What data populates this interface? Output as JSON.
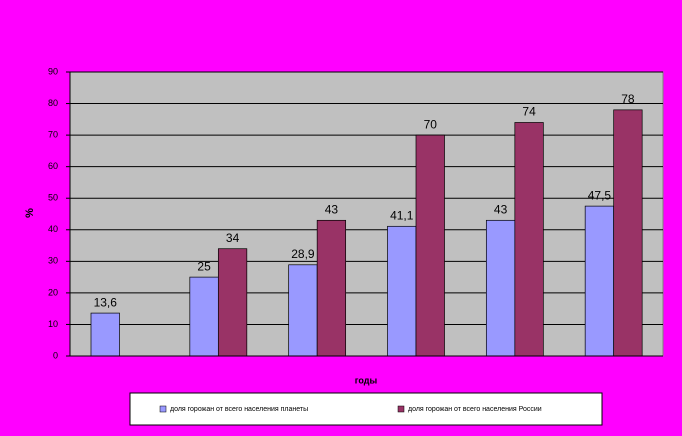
{
  "chart_data": {
    "type": "bar",
    "x_label": "годы",
    "y_label": "%",
    "categories": [
      null,
      null,
      null,
      null,
      null,
      null
    ],
    "series": [
      {
        "name": "доля горожан от всего населения планеты",
        "color": "#9999ff",
        "values": [
          13.6,
          25,
          28.9,
          41.1,
          43,
          47.5
        ],
        "value_labels": [
          "13,6",
          "25",
          "28,9",
          "41,1",
          "43",
          "47,5"
        ]
      },
      {
        "name": "доля горожан от всего населения России",
        "color": "#993366",
        "values": [
          null,
          34,
          43,
          70,
          74,
          78
        ],
        "value_labels": [
          null,
          "34",
          "43",
          "70",
          "74",
          "78"
        ]
      }
    ],
    "ylim": [
      0,
      90
    ],
    "yticks": [
      0,
      10,
      20,
      30,
      40,
      50,
      60,
      70,
      80,
      90
    ],
    "grid": true,
    "legend": "bottom"
  }
}
